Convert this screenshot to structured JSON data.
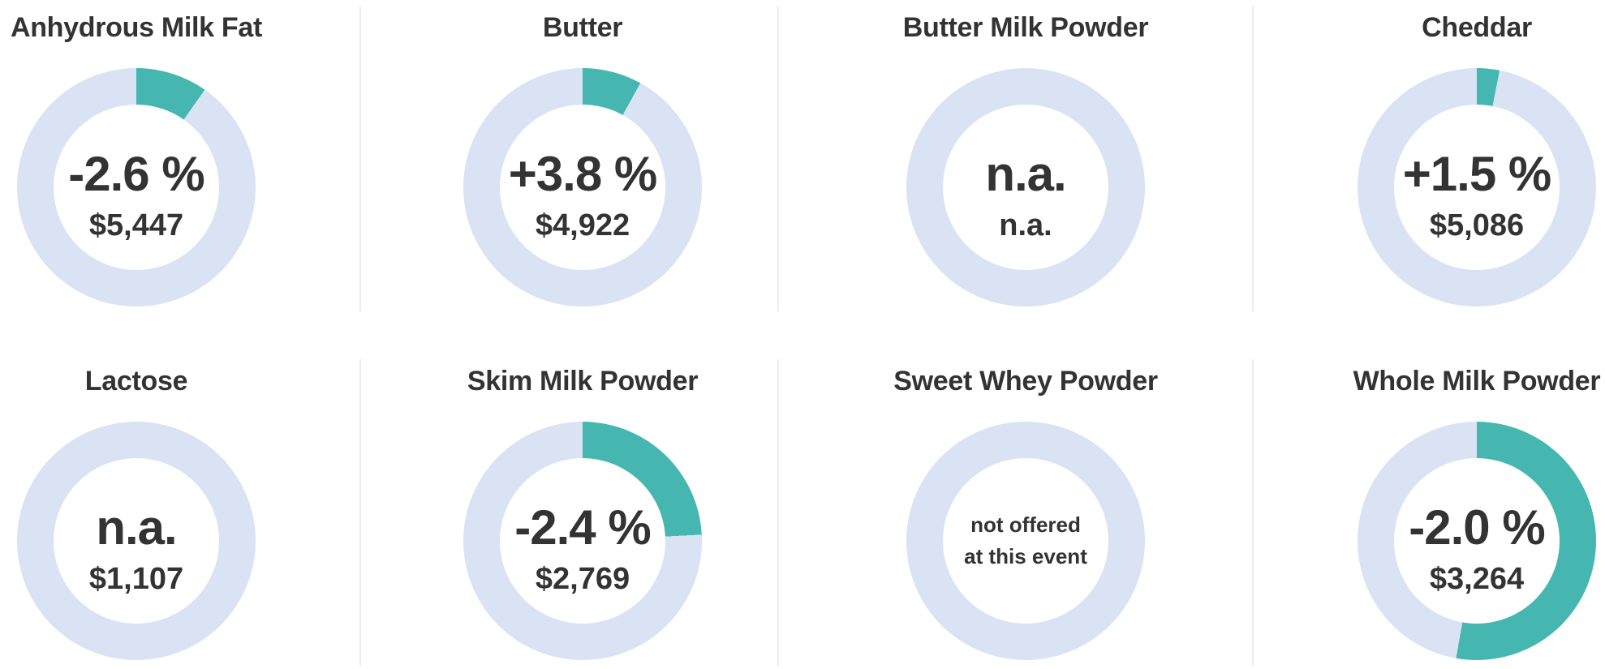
{
  "colors": {
    "arc_active": "#45b7b0",
    "arc_track": "#d9e3f4",
    "title_text": "#333333",
    "value_text": "#333333",
    "divider": "#ededed",
    "background": "#ffffff"
  },
  "cards": [
    {
      "title": "Anhydrous Milk Fat",
      "change": "-2.6 %",
      "price": "$5,447",
      "arc_degrees": 35
    },
    {
      "title": "Butter",
      "change": "+3.8 %",
      "price": "$4,922",
      "arc_degrees": 29
    },
    {
      "title": "Butter Milk Powder",
      "change": "n.a.",
      "price": "n.a.",
      "arc_degrees": 0
    },
    {
      "title": "Cheddar",
      "change": "+1.5 %",
      "price": "$5,086",
      "arc_degrees": 11
    },
    {
      "title": "Lactose",
      "change": "n.a.",
      "price": "$1,107",
      "arc_degrees": 0
    },
    {
      "title": "Skim Milk Powder",
      "change": "-2.4 %",
      "price": "$2,769",
      "arc_degrees": 87
    },
    {
      "title": "Sweet Whey Powder",
      "change": "",
      "price": "",
      "note_line1": "not offered",
      "note_line2": "at this event",
      "arc_degrees": 0
    },
    {
      "title": "Whole Milk Powder",
      "change": "-2.0 %",
      "price": "$3,264",
      "arc_degrees": 190
    }
  ],
  "chart_data": {
    "type": "donut",
    "legend_position": "none",
    "arc_start": "12 o'clock, clockwise",
    "charts": [
      {
        "label": "Anhydrous Milk Fat",
        "change_percent": -2.6,
        "price_usd": 5447,
        "arc_degrees": 35,
        "arc_fraction": 0.097
      },
      {
        "label": "Butter",
        "change_percent": 3.8,
        "price_usd": 4922,
        "arc_degrees": 29,
        "arc_fraction": 0.081
      },
      {
        "label": "Butter Milk Powder",
        "change_percent": null,
        "price_usd": null,
        "arc_degrees": 0,
        "arc_fraction": 0
      },
      {
        "label": "Cheddar",
        "change_percent": 1.5,
        "price_usd": 5086,
        "arc_degrees": 11,
        "arc_fraction": 0.031
      },
      {
        "label": "Lactose",
        "change_percent": null,
        "price_usd": 1107,
        "arc_degrees": 0,
        "arc_fraction": 0
      },
      {
        "label": "Skim Milk Powder",
        "change_percent": -2.4,
        "price_usd": 2769,
        "arc_degrees": 87,
        "arc_fraction": 0.242
      },
      {
        "label": "Sweet Whey Powder",
        "change_percent": null,
        "price_usd": null,
        "arc_degrees": 0,
        "arc_fraction": 0,
        "note": "not offered at this event"
      },
      {
        "label": "Whole Milk Powder",
        "change_percent": -2.0,
        "price_usd": 3264,
        "arc_degrees": 190,
        "arc_fraction": 0.528
      }
    ]
  }
}
